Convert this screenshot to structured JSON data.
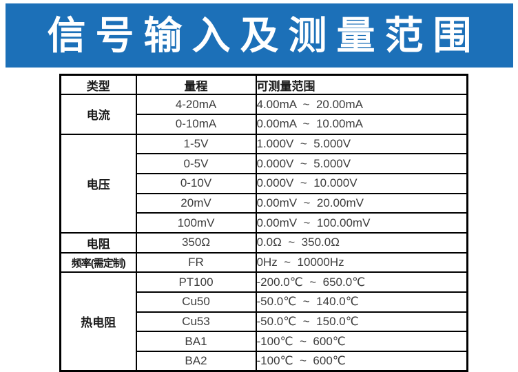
{
  "banner": {
    "title": "信号输入及测量范围",
    "bg_color": "#1c70b8",
    "text_color": "#ffffff"
  },
  "table": {
    "headers": {
      "type": "类型",
      "range": "量程",
      "measurable": "可测量范围"
    },
    "groups": [
      {
        "label": "电流",
        "rows": [
          {
            "range": "4-20mA",
            "measure": "4.00mA  ~  20.00mA"
          },
          {
            "range": "0-10mA",
            "measure": "0.00mA  ~  10.00mA"
          }
        ]
      },
      {
        "label": "电压",
        "rows": [
          {
            "range": "1-5V",
            "measure": "1.000V  ~  5.000V"
          },
          {
            "range": "0-5V",
            "measure": "0.000V  ~  5.000V"
          },
          {
            "range": "0-10V",
            "measure": "0.000V  ~  10.000V"
          },
          {
            "range": "20mV",
            "measure": "0.00mV  ~  20.00mV"
          },
          {
            "range": "100mV",
            "measure": "0.00mV  ~  100.00mV"
          }
        ]
      },
      {
        "label": "电阻",
        "rows": [
          {
            "range": "350Ω",
            "measure": "0.0Ω  ~  350.0Ω"
          }
        ]
      },
      {
        "label": "频率(需定制)",
        "rows": [
          {
            "range": "FR",
            "measure": "0Hz  ~  10000Hz"
          }
        ]
      },
      {
        "label": "热电阻",
        "rows": [
          {
            "range": "PT100",
            "measure": "-200.0℃  ~  650.0℃"
          },
          {
            "range": "Cu50",
            "measure": "-50.0℃  ~  140.0℃"
          },
          {
            "range": "Cu53",
            "measure": "-50.0℃  ~  150.0℃"
          },
          {
            "range": "BA1",
            "measure": "-100℃  ~  600℃"
          },
          {
            "range": "BA2",
            "measure": "-100℃  ~  600℃"
          }
        ]
      }
    ]
  }
}
